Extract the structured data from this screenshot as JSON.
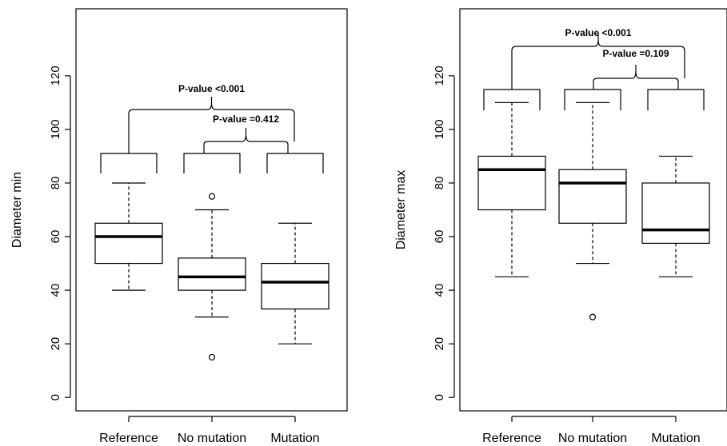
{
  "chart_data": [
    {
      "type": "boxplot",
      "ylabel": "Diameter min",
      "ylim": [
        -5,
        145
      ],
      "yticks": [
        0,
        20,
        40,
        60,
        80,
        100,
        120
      ],
      "categories": [
        "Reference",
        "No mutation",
        "Mutation"
      ],
      "boxes": [
        {
          "name": "Reference",
          "lower_whisker": 40,
          "q1": 50,
          "median": 60,
          "q3": 65,
          "upper_whisker": 80,
          "outliers": []
        },
        {
          "name": "No mutation",
          "lower_whisker": 30,
          "q1": 40,
          "median": 45,
          "q3": 52,
          "upper_whisker": 70,
          "outliers": [
            75,
            15
          ]
        },
        {
          "name": "Mutation",
          "lower_whisker": 20,
          "q1": 33,
          "median": 43,
          "q3": 50,
          "upper_whisker": 65,
          "outliers": []
        }
      ],
      "annotations": [
        {
          "text": "P-value  <0.001",
          "groups": [
            "Reference",
            "No mutation & Mutation"
          ]
        },
        {
          "text": "P-value  =0.412",
          "groups": [
            "No mutation",
            "Mutation"
          ]
        }
      ]
    },
    {
      "type": "boxplot",
      "ylabel": "Diameter max",
      "ylim": [
        -5,
        145
      ],
      "yticks": [
        0,
        20,
        40,
        60,
        80,
        100,
        120
      ],
      "categories": [
        "Reference",
        "No mutation",
        "Mutation"
      ],
      "boxes": [
        {
          "name": "Reference",
          "lower_whisker": 45,
          "q1": 70,
          "median": 85,
          "q3": 90,
          "upper_whisker": 110,
          "outliers": []
        },
        {
          "name": "No mutation",
          "lower_whisker": 50,
          "q1": 65,
          "median": 80,
          "q3": 85,
          "upper_whisker": 110,
          "outliers": [
            30
          ]
        },
        {
          "name": "Mutation",
          "lower_whisker": 45,
          "q1": 57.5,
          "median": 62.5,
          "q3": 80,
          "upper_whisker": 90,
          "outliers": []
        }
      ],
      "annotations": [
        {
          "text": "P-value  <0.001",
          "groups": [
            "Reference",
            "No mutation & Mutation"
          ]
        },
        {
          "text": "P-value  =0.109",
          "groups": [
            "No mutation",
            "Mutation"
          ]
        }
      ]
    }
  ]
}
